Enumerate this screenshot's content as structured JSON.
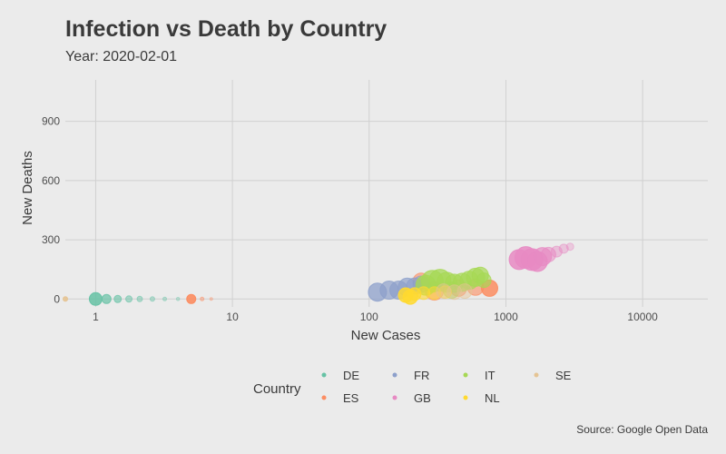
{
  "chart_data": {
    "type": "scatter",
    "title": "Infection vs Death by Country",
    "subtitle": "Year: 2020-02-01",
    "xlabel": "New Cases",
    "ylabel": "New Deaths",
    "x_scale": "log",
    "xlim": [
      0.6,
      30000
    ],
    "ylim": [
      -40,
      1110
    ],
    "x_ticks": [
      {
        "value": 1,
        "label": "1"
      },
      {
        "value": 10,
        "label": "10"
      },
      {
        "value": 100,
        "label": "100"
      },
      {
        "value": 1000,
        "label": "1000"
      },
      {
        "value": 10000,
        "label": "10000"
      }
    ],
    "y_ticks": [
      {
        "value": 0,
        "label": "0"
      },
      {
        "value": 300,
        "label": "300"
      },
      {
        "value": 600,
        "label": "600"
      },
      {
        "value": 900,
        "label": "900"
      }
    ],
    "grid": true,
    "legend": {
      "title": "Country",
      "position": "bottom",
      "entries": [
        {
          "label": "DE",
          "color": "#66c2a5"
        },
        {
          "label": "ES",
          "color": "#fc8d62"
        },
        {
          "label": "FR",
          "color": "#8da0cb"
        },
        {
          "label": "GB",
          "color": "#e78ac3"
        },
        {
          "label": "IT",
          "color": "#a6d854"
        },
        {
          "label": "NL",
          "color": "#ffd92f"
        },
        {
          "label": "SE",
          "color": "#e5c494"
        }
      ]
    },
    "series": [
      {
        "name": "DE",
        "color": "#66c2a5",
        "points": [
          {
            "x": 1,
            "y": 0,
            "size": 7,
            "alpha": 0.85
          },
          {
            "x": 1.2,
            "y": 0,
            "size": 5,
            "alpha": 0.7
          },
          {
            "x": 1.45,
            "y": 0,
            "size": 4,
            "alpha": 0.6
          },
          {
            "x": 1.75,
            "y": 0,
            "size": 3.5,
            "alpha": 0.5
          },
          {
            "x": 2.1,
            "y": 0,
            "size": 3,
            "alpha": 0.45
          },
          {
            "x": 2.6,
            "y": 0,
            "size": 2.5,
            "alpha": 0.4
          },
          {
            "x": 3.2,
            "y": 0,
            "size": 2,
            "alpha": 0.35
          },
          {
            "x": 4,
            "y": 0,
            "size": 1.8,
            "alpha": 0.3
          }
        ]
      },
      {
        "name": "ES",
        "color": "#fc8d62",
        "points": [
          {
            "x": 5,
            "y": 0,
            "size": 5,
            "alpha": 0.9
          },
          {
            "x": 6,
            "y": 0,
            "size": 2,
            "alpha": 0.4
          },
          {
            "x": 7,
            "y": 0,
            "size": 1.5,
            "alpha": 0.3
          },
          {
            "x": 240,
            "y": 90,
            "size": 9,
            "alpha": 0.6
          },
          {
            "x": 300,
            "y": 40,
            "size": 10,
            "alpha": 0.55
          },
          {
            "x": 450,
            "y": 55,
            "size": 9,
            "alpha": 0.55
          },
          {
            "x": 600,
            "y": 60,
            "size": 9,
            "alpha": 0.6
          },
          {
            "x": 760,
            "y": 55,
            "size": 9,
            "alpha": 0.85
          }
        ]
      },
      {
        "name": "FR",
        "color": "#8da0cb",
        "points": [
          {
            "x": 115,
            "y": 35,
            "size": 10,
            "alpha": 0.75
          },
          {
            "x": 140,
            "y": 45,
            "size": 10,
            "alpha": 0.7
          },
          {
            "x": 165,
            "y": 45,
            "size": 10,
            "alpha": 0.7
          },
          {
            "x": 190,
            "y": 60,
            "size": 10,
            "alpha": 0.7
          },
          {
            "x": 215,
            "y": 65,
            "size": 9,
            "alpha": 0.65
          },
          {
            "x": 240,
            "y": 75,
            "size": 9,
            "alpha": 0.6
          }
        ]
      },
      {
        "name": "GB",
        "color": "#e78ac3",
        "points": [
          {
            "x": 1250,
            "y": 200,
            "size": 11,
            "alpha": 0.85
          },
          {
            "x": 1400,
            "y": 210,
            "size": 12,
            "alpha": 0.85
          },
          {
            "x": 1550,
            "y": 200,
            "size": 12,
            "alpha": 0.85
          },
          {
            "x": 1700,
            "y": 190,
            "size": 11,
            "alpha": 0.8
          },
          {
            "x": 1850,
            "y": 215,
            "size": 10,
            "alpha": 0.7
          },
          {
            "x": 2050,
            "y": 225,
            "size": 8,
            "alpha": 0.55
          },
          {
            "x": 2350,
            "y": 240,
            "size": 6,
            "alpha": 0.45
          },
          {
            "x": 2650,
            "y": 255,
            "size": 5,
            "alpha": 0.4
          },
          {
            "x": 2950,
            "y": 265,
            "size": 4,
            "alpha": 0.35
          }
        ]
      },
      {
        "name": "IT",
        "color": "#a6d854",
        "points": [
          {
            "x": 260,
            "y": 70,
            "size": 11,
            "alpha": 0.75
          },
          {
            "x": 290,
            "y": 90,
            "size": 12,
            "alpha": 0.75
          },
          {
            "x": 330,
            "y": 95,
            "size": 12,
            "alpha": 0.75
          },
          {
            "x": 370,
            "y": 85,
            "size": 11,
            "alpha": 0.7
          },
          {
            "x": 420,
            "y": 80,
            "size": 10,
            "alpha": 0.7
          },
          {
            "x": 480,
            "y": 85,
            "size": 10,
            "alpha": 0.7
          },
          {
            "x": 540,
            "y": 95,
            "size": 10,
            "alpha": 0.7
          },
          {
            "x": 600,
            "y": 110,
            "size": 10,
            "alpha": 0.7
          },
          {
            "x": 650,
            "y": 120,
            "size": 9,
            "alpha": 0.7
          },
          {
            "x": 690,
            "y": 95,
            "size": 8,
            "alpha": 0.65
          },
          {
            "x": 400,
            "y": 45,
            "size": 9,
            "alpha": 0.55
          }
        ]
      },
      {
        "name": "NL",
        "color": "#ffd92f",
        "points": [
          {
            "x": 185,
            "y": 20,
            "size": 8,
            "alpha": 0.85
          },
          {
            "x": 200,
            "y": 10,
            "size": 8,
            "alpha": 0.85
          },
          {
            "x": 215,
            "y": 25,
            "size": 7,
            "alpha": 0.75
          },
          {
            "x": 250,
            "y": 30,
            "size": 7,
            "alpha": 0.6
          },
          {
            "x": 300,
            "y": 30,
            "size": 7,
            "alpha": 0.5
          },
          {
            "x": 360,
            "y": 35,
            "size": 7,
            "alpha": 0.45
          }
        ]
      },
      {
        "name": "SE",
        "color": "#e5c494",
        "points": [
          {
            "x": 0.6,
            "y": 0,
            "size": 2.5,
            "alpha": 0.9
          },
          {
            "x": 350,
            "y": 40,
            "size": 8,
            "alpha": 0.45
          },
          {
            "x": 420,
            "y": 35,
            "size": 8,
            "alpha": 0.45
          },
          {
            "x": 500,
            "y": 40,
            "size": 8,
            "alpha": 0.45
          }
        ]
      }
    ],
    "caption": "Source: Google Open Data"
  }
}
